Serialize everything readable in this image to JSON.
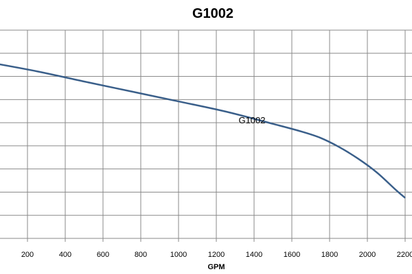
{
  "chart_data": {
    "type": "line",
    "title": "G1002",
    "xlabel": "GPM",
    "ylabel": "",
    "x_ticks": [
      200,
      400,
      600,
      800,
      1000,
      1200,
      1400,
      1600,
      1800,
      2000,
      2200
    ],
    "y_gridlines": 9,
    "grid": true,
    "series": [
      {
        "name": "G1002",
        "color": "#3a5f8a",
        "x": [
          0,
          250,
          500,
          750,
          1000,
          1250,
          1500,
          1650,
          1750,
          1850,
          1950,
          2050,
          2150,
          2200
        ],
        "y": [
          7.6,
          7.22,
          6.78,
          6.35,
          5.92,
          5.48,
          4.95,
          4.62,
          4.35,
          3.95,
          3.45,
          2.85,
          2.1,
          1.75
        ]
      }
    ],
    "annotations": [
      {
        "text": "G1002",
        "x": 1400,
        "y": 4.98
      }
    ]
  }
}
